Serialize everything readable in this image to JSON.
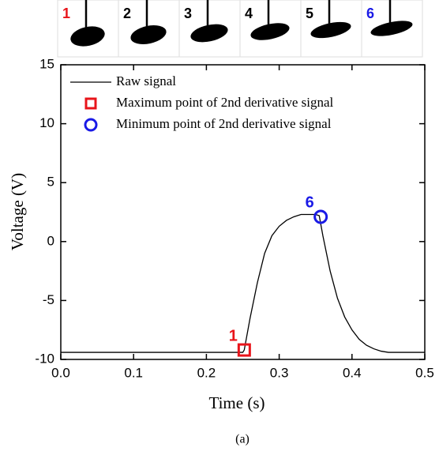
{
  "frames": {
    "labels": [
      "1",
      "2",
      "3",
      "4",
      "5",
      "6"
    ],
    "colors": [
      "#e8141a",
      "#000000",
      "#000000",
      "#000000",
      "#000000",
      "#1a1ae6"
    ]
  },
  "caption": "(a)",
  "chart_data": {
    "type": "line",
    "x_label": "Time (s)",
    "y_label": "Voltage (V)",
    "xlim": [
      0,
      0.5
    ],
    "ylim": [
      -10,
      15
    ],
    "xticks": [
      {
        "value": 0,
        "label": "0.0"
      },
      0.1,
      0.2,
      0.3,
      0.4,
      0.5
    ],
    "yticks": [
      -10,
      -5,
      0,
      5,
      10,
      15
    ],
    "legend": "top-left",
    "series": [
      {
        "name": "Raw signal",
        "color": "#000000",
        "marker": "none",
        "x": [
          0,
          0.05,
          0.1,
          0.15,
          0.2,
          0.25,
          0.252,
          0.26,
          0.27,
          0.28,
          0.29,
          0.3,
          0.31,
          0.32,
          0.33,
          0.34,
          0.35,
          0.355,
          0.36,
          0.37,
          0.38,
          0.39,
          0.4,
          0.41,
          0.42,
          0.43,
          0.44,
          0.45,
          0.47,
          0.5
        ],
        "values": [
          -9.4,
          -9.4,
          -9.4,
          -9.4,
          -9.4,
          -9.4,
          -9.2,
          -6.5,
          -3.5,
          -1.0,
          0.5,
          1.3,
          1.8,
          2.1,
          2.3,
          2.3,
          2.3,
          2.2,
          0.5,
          -2.5,
          -4.8,
          -6.4,
          -7.5,
          -8.3,
          -8.8,
          -9.1,
          -9.3,
          -9.4,
          -9.4,
          -9.4
        ]
      },
      {
        "name": "Maximum point of 2nd derivative signal",
        "color": "#e8141a",
        "marker": "square",
        "label": "1",
        "x": [
          0.252
        ],
        "values": [
          -9.2
        ]
      },
      {
        "name": "Minimum point of 2nd derivative signal",
        "color": "#1a1ae6",
        "marker": "circle",
        "label": "6",
        "x": [
          0.357
        ],
        "values": [
          2.1
        ]
      }
    ]
  }
}
